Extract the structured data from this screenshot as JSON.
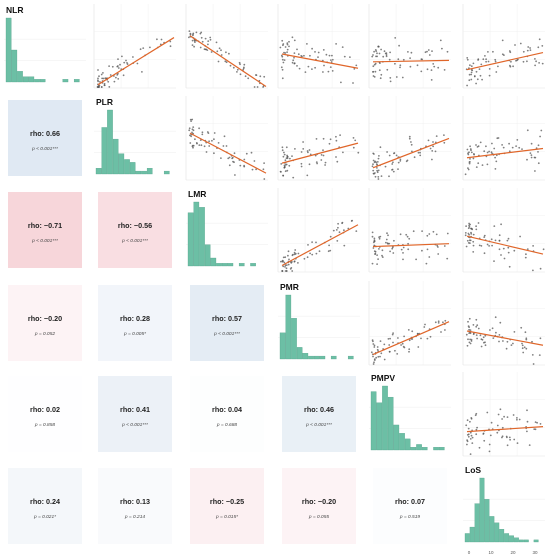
{
  "chart_data": {
    "type": "scatter",
    "description_type": "correlation-pair-matrix",
    "variables": [
      "NLR",
      "PLR",
      "LMR",
      "PMR",
      "PMPV",
      "LoS"
    ],
    "colors": {
      "histogram": "#6cbfa5",
      "histogram_edge": "#4f9e86",
      "points": "#555555",
      "fit_line": "#e0662a",
      "positive_fill": "#dce6f1",
      "negative_fill": "#f7d4d9"
    },
    "correlations": [
      {
        "row": 1,
        "col": 0,
        "rho": "rho: 0.66",
        "p": "p < 0.001***",
        "value": 0.66
      },
      {
        "row": 2,
        "col": 0,
        "rho": "rho: −0.71",
        "p": "p < 0.001***",
        "value": -0.71
      },
      {
        "row": 2,
        "col": 1,
        "rho": "rho: −0.56",
        "p": "p < 0.001***",
        "value": -0.56
      },
      {
        "row": 3,
        "col": 0,
        "rho": "rho: −0.20",
        "p": "p = 0.052",
        "value": -0.2
      },
      {
        "row": 3,
        "col": 1,
        "rho": "rho: 0.28",
        "p": "p = 0.005*",
        "value": 0.28
      },
      {
        "row": 3,
        "col": 2,
        "rho": "rho: 0.57",
        "p": "p < 0.001***",
        "value": 0.57
      },
      {
        "row": 4,
        "col": 0,
        "rho": "rho: 0.02",
        "p": "p = 0.858",
        "value": 0.02
      },
      {
        "row": 4,
        "col": 1,
        "rho": "rho: 0.41",
        "p": "p < 0.001***",
        "value": 0.41
      },
      {
        "row": 4,
        "col": 2,
        "rho": "rho: 0.04",
        "p": "p = 0.688",
        "value": 0.04
      },
      {
        "row": 4,
        "col": 3,
        "rho": "rho: 0.46",
        "p": "p < 0.001***",
        "value": 0.46
      },
      {
        "row": 5,
        "col": 0,
        "rho": "rho: 0.24",
        "p": "p = 0.021*",
        "value": 0.24
      },
      {
        "row": 5,
        "col": 1,
        "rho": "rho: 0.13",
        "p": "p = 0.214",
        "value": 0.13
      },
      {
        "row": 5,
        "col": 2,
        "rho": "rho: −0.25",
        "p": "p = 0.015*",
        "value": -0.25
      },
      {
        "row": 5,
        "col": 3,
        "rho": "rho: −0.20",
        "p": "p = 0.055",
        "value": -0.2
      },
      {
        "row": 5,
        "col": 4,
        "rho": "rho: 0.07",
        "p": "p = 0.519",
        "value": 0.07
      }
    ],
    "histograms": [
      {
        "variable": "NLR",
        "counts": [
          24,
          12,
          4,
          2,
          2,
          1,
          1,
          0,
          0,
          0,
          1,
          0,
          1
        ]
      },
      {
        "variable": "PLR",
        "counts": [
          2,
          16,
          22,
          12,
          7,
          5,
          4,
          1,
          1,
          2,
          0,
          0,
          1
        ]
      },
      {
        "variable": "LMR",
        "counts": [
          20,
          24,
          22,
          8,
          3,
          1,
          1,
          1,
          0,
          1,
          0,
          1,
          0
        ]
      },
      {
        "variable": "PMR",
        "counts": [
          9,
          22,
          14,
          4,
          2,
          1,
          1,
          1,
          0,
          1,
          0,
          0,
          1
        ]
      },
      {
        "variable": "PMPV",
        "counts": [
          21,
          17,
          23,
          19,
          9,
          6,
          4,
          1,
          2,
          1,
          0,
          1,
          1
        ]
      },
      {
        "variable": "LoS",
        "counts": [
          4,
          7,
          18,
          30,
          20,
          12,
          9,
          6,
          4,
          3,
          2,
          1,
          1,
          0,
          1
        ]
      },
      {
        "variable": "LoS_axis",
        "ticks": [
          "0",
          "10",
          "20",
          "30"
        ]
      }
    ],
    "scatter_trends": [
      {
        "row": 0,
        "col": 1,
        "slope": 0.66
      },
      {
        "row": 0,
        "col": 2,
        "slope": -0.71
      },
      {
        "row": 0,
        "col": 3,
        "slope": -0.2
      },
      {
        "row": 0,
        "col": 4,
        "slope": 0.02
      },
      {
        "row": 0,
        "col": 5,
        "slope": 0.24
      },
      {
        "row": 1,
        "col": 2,
        "slope": -0.56
      },
      {
        "row": 1,
        "col": 3,
        "slope": 0.28
      },
      {
        "row": 1,
        "col": 4,
        "slope": 0.41
      },
      {
        "row": 1,
        "col": 5,
        "slope": 0.13
      },
      {
        "row": 2,
        "col": 3,
        "slope": 0.57
      },
      {
        "row": 2,
        "col": 4,
        "slope": 0.04
      },
      {
        "row": 2,
        "col": 5,
        "slope": -0.25
      },
      {
        "row": 3,
        "col": 4,
        "slope": 0.46
      },
      {
        "row": 3,
        "col": 5,
        "slope": -0.2
      },
      {
        "row": 4,
        "col": 5,
        "slope": 0.07
      }
    ]
  }
}
